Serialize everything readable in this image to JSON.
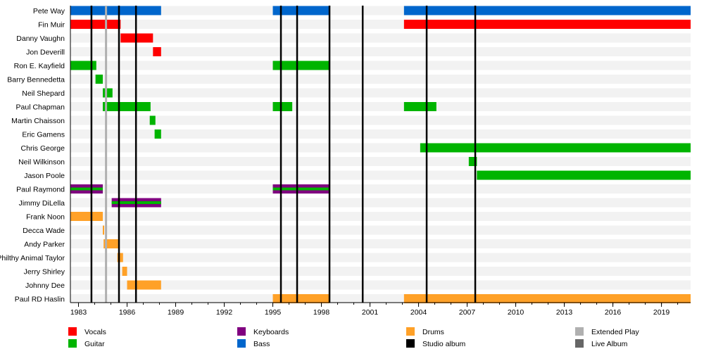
{
  "chart_data": {
    "type": "timeline",
    "xlim": [
      1982.5,
      2020.8
    ],
    "x_ticks": [
      1983,
      1986,
      1989,
      1992,
      1995,
      1998,
      2001,
      2004,
      2007,
      2010,
      2013,
      2016,
      2019
    ],
    "roles": {
      "Vocals": "#ff0000",
      "Guitar": "#00b400",
      "Keyboards": "#800080",
      "Bass": "#0066cc",
      "Drums": "#ffa128",
      "Studio album": "#000000",
      "Extended Play": "#b0b0b0",
      "Live Album": "#666666"
    },
    "members": [
      {
        "name": "Pete Way",
        "role": "Bass",
        "periods": [
          [
            1982.5,
            1988.1
          ],
          [
            1995.0,
            1998.5
          ],
          [
            2003.1,
            2020.8
          ]
        ]
      },
      {
        "name": "Fin Muir",
        "role": "Vocals",
        "periods": [
          [
            1982.5,
            1985.6
          ],
          [
            2003.1,
            2020.8
          ]
        ]
      },
      {
        "name": "Danny Vaughn",
        "role": "Vocals",
        "periods": [
          [
            1985.6,
            1987.6
          ]
        ]
      },
      {
        "name": "Jon Deverill",
        "role": "Vocals",
        "periods": [
          [
            1987.6,
            1988.1
          ]
        ]
      },
      {
        "name": "Ron E. Kayfield",
        "role": "Guitar",
        "periods": [
          [
            1982.5,
            1984.1
          ],
          [
            1995.0,
            1998.5
          ]
        ]
      },
      {
        "name": "Barry Bennedetta",
        "role": "Guitar",
        "periods": [
          [
            1984.05,
            1984.5
          ]
        ]
      },
      {
        "name": "Neil Shepard",
        "role": "Guitar",
        "periods": [
          [
            1984.5,
            1985.1
          ]
        ]
      },
      {
        "name": "Paul Chapman",
        "role": "Guitar",
        "periods": [
          [
            1984.5,
            1987.45
          ],
          [
            1995.0,
            1996.2
          ],
          [
            2003.1,
            2005.1
          ]
        ]
      },
      {
        "name": "Martin Chaisson",
        "role": "Guitar",
        "periods": [
          [
            1987.4,
            1987.75
          ]
        ]
      },
      {
        "name": "Eric Gamens",
        "role": "Guitar",
        "periods": [
          [
            1987.7,
            1988.1
          ]
        ]
      },
      {
        "name": "Chris George",
        "role": "Guitar",
        "periods": [
          [
            2004.1,
            2020.8
          ]
        ]
      },
      {
        "name": "Neil Wilkinson",
        "role": "Guitar",
        "periods": [
          [
            2007.1,
            2007.6
          ]
        ]
      },
      {
        "name": "Jason Poole",
        "role": "Guitar",
        "periods": [
          [
            2007.6,
            2020.8
          ]
        ]
      },
      {
        "name": "Paul Raymond",
        "role": "Keyboards",
        "secondary": "Guitar",
        "periods": [
          [
            1982.5,
            1984.5
          ],
          [
            1995.0,
            1998.5
          ]
        ]
      },
      {
        "name": "Jimmy DiLella",
        "role": "Keyboards",
        "secondary": "Guitar",
        "periods": [
          [
            1985.05,
            1988.1
          ]
        ]
      },
      {
        "name": "Frank Noon",
        "role": "Drums",
        "periods": [
          [
            1982.5,
            1984.5
          ]
        ]
      },
      {
        "name": "Decca Wade",
        "role": "Drums",
        "periods": [
          [
            1984.5,
            1984.58
          ]
        ]
      },
      {
        "name": "Andy Parker",
        "role": "Drums",
        "periods": [
          [
            1984.55,
            1985.45
          ]
        ]
      },
      {
        "name": "Philthy Animal Taylor",
        "role": "Drums",
        "periods": [
          [
            1985.4,
            1985.75
          ]
        ]
      },
      {
        "name": "Jerry Shirley",
        "role": "Drums",
        "periods": [
          [
            1985.7,
            1986.0
          ]
        ]
      },
      {
        "name": "Johnny Dee",
        "role": "Drums",
        "periods": [
          [
            1986.0,
            1988.1
          ]
        ]
      },
      {
        "name": "Paul RD Haslin",
        "role": "Drums",
        "periods": [
          [
            1995.0,
            1998.5
          ],
          [
            2003.1,
            2020.8
          ]
        ]
      }
    ],
    "events": [
      {
        "type": "Studio album",
        "year": 1983.8
      },
      {
        "type": "Extended Play",
        "year": 1984.7
      },
      {
        "type": "Studio album",
        "year": 1985.5
      },
      {
        "type": "Studio album",
        "year": 1986.55
      },
      {
        "type": "Studio album",
        "year": 1995.5
      },
      {
        "type": "Studio album",
        "year": 1996.5
      },
      {
        "type": "Studio album",
        "year": 1998.5
      },
      {
        "type": "Studio album",
        "year": 2000.55
      },
      {
        "type": "Studio album",
        "year": 2004.5
      },
      {
        "type": "Studio album",
        "year": 2007.5
      }
    ],
    "legend": [
      "Vocals",
      "Guitar",
      "Keyboards",
      "Bass",
      "Drums",
      "Studio album",
      "Extended Play",
      "Live Album"
    ],
    "legend_placement": "bottom"
  }
}
